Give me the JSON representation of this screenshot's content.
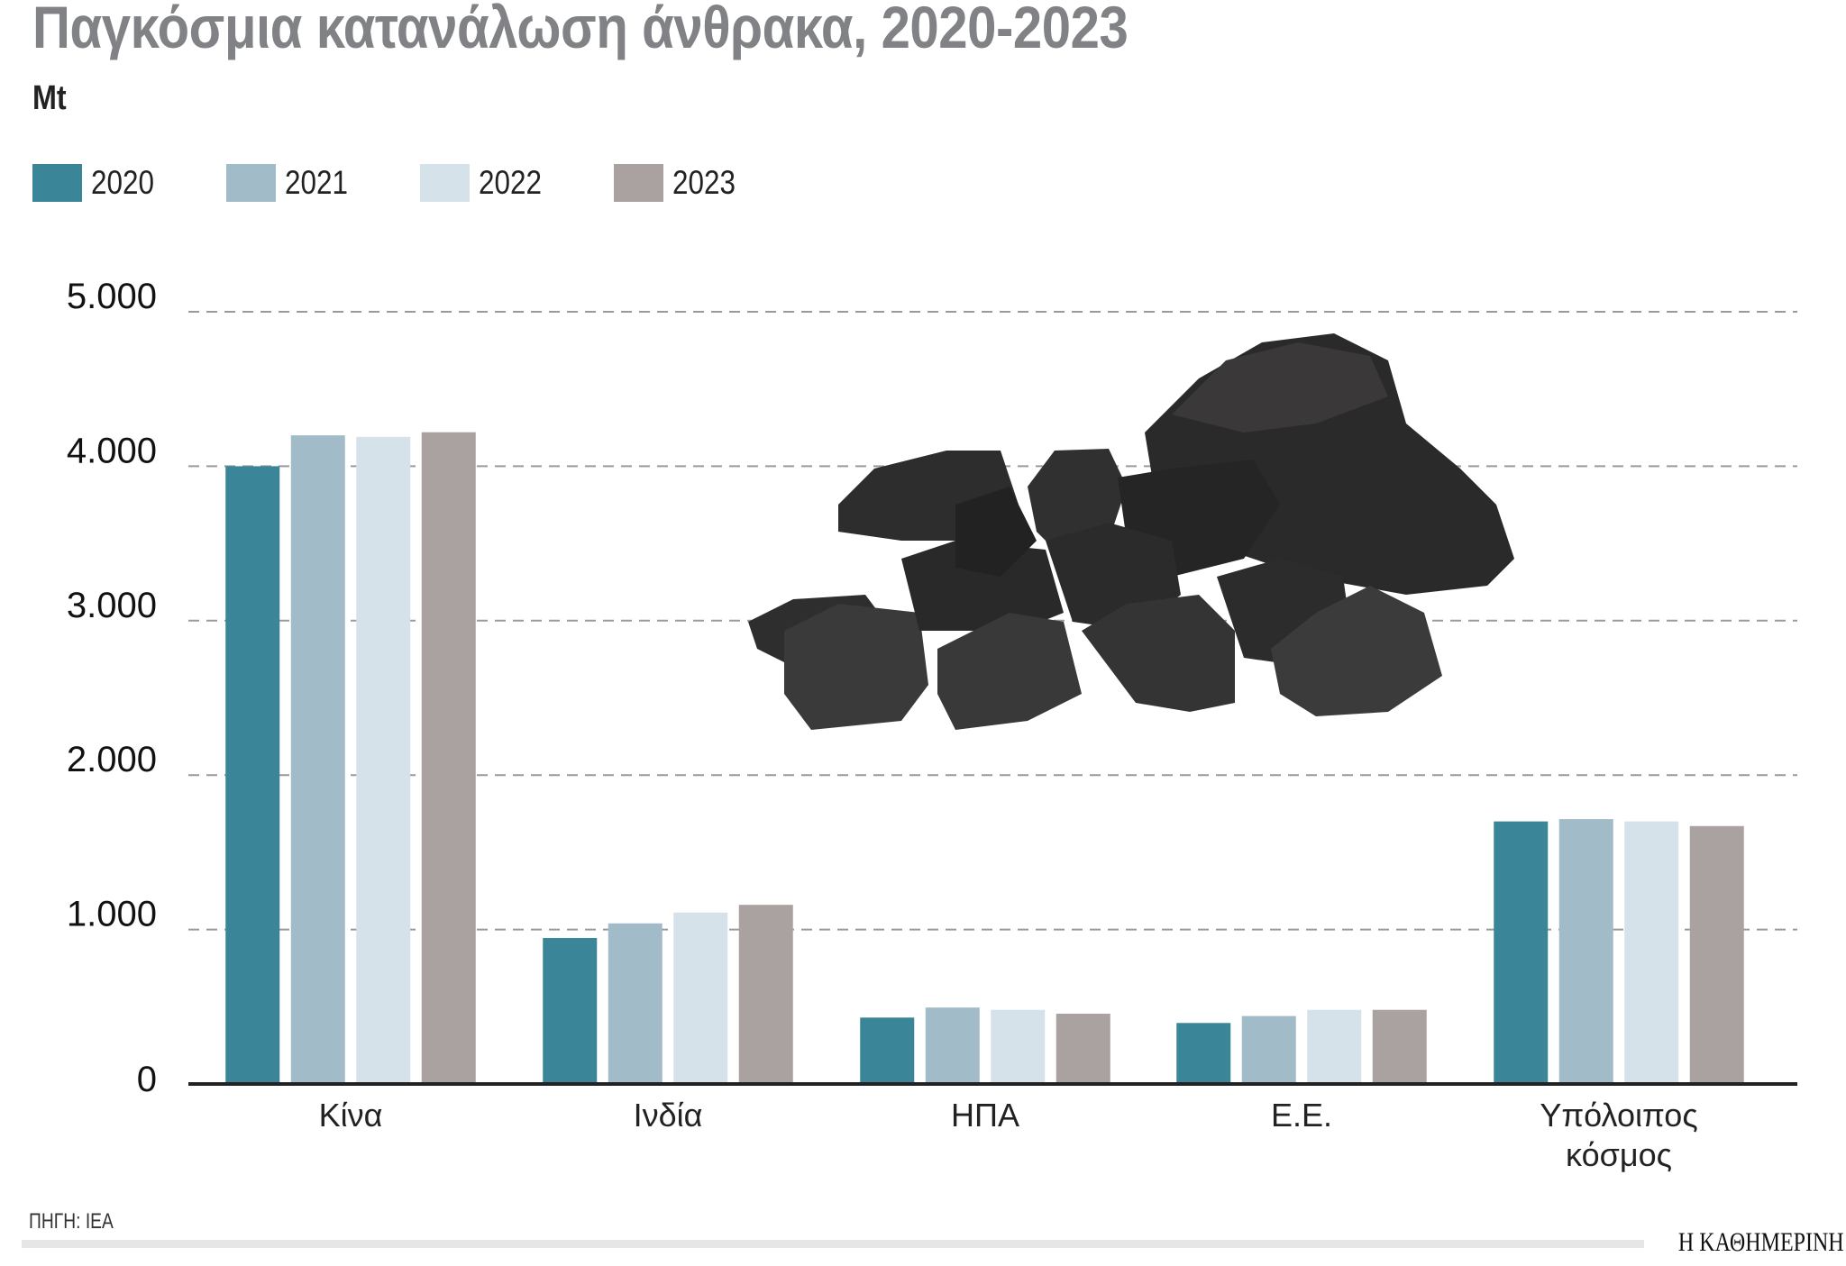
{
  "title": "Παγκόσμια κατανάλωση άνθρακα, 2020-2023",
  "unit": "Mt",
  "source": "ΠΗΓΗ: IEA",
  "brand": "Η ΚΑΘΗΜΕΡΙΝΗ",
  "chart_data": {
    "type": "bar",
    "title": "Παγκόσμια κατανάλωση άνθρακα, 2020-2023",
    "ylabel": "Mt",
    "xlabel": "",
    "categories": [
      "Κίνα",
      "Ινδία",
      "ΗΠΑ",
      "Ε.Ε.",
      "Υπόλοιπος κόσμος"
    ],
    "series": [
      {
        "name": "2020",
        "color": "#3a8597",
        "values": [
          4000,
          945,
          430,
          395,
          1700
        ]
      },
      {
        "name": "2021",
        "color": "#a1bcc8",
        "values": [
          4200,
          1040,
          495,
          440,
          1715
        ]
      },
      {
        "name": "2022",
        "color": "#d5e2ea",
        "values": [
          4190,
          1110,
          480,
          480,
          1700
        ]
      },
      {
        "name": "2023",
        "color": "#aaa2a0",
        "values": [
          4220,
          1160,
          455,
          480,
          1670
        ]
      }
    ],
    "ylim": [
      0,
      5000
    ],
    "yticks": [
      0,
      1000,
      2000,
      3000,
      4000,
      5000
    ],
    "ytick_labels": [
      "0",
      "1.000",
      "2.000",
      "3.000",
      "4.000",
      "5.000"
    ],
    "grid": true,
    "legend": "top-left"
  }
}
